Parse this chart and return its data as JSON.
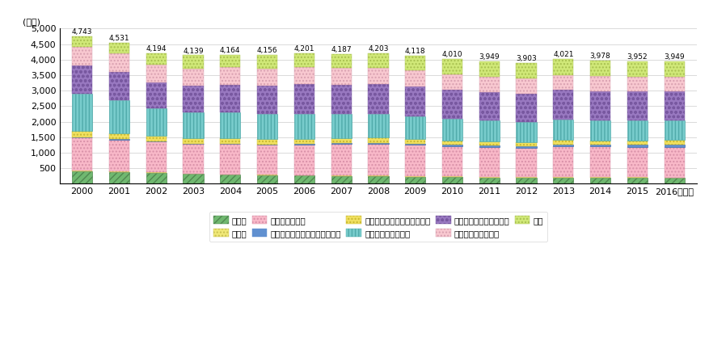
{
  "years": [
    2000,
    2001,
    2002,
    2003,
    2004,
    2005,
    2006,
    2007,
    2008,
    2009,
    2010,
    2011,
    2012,
    2013,
    2014,
    2015,
    2016
  ],
  "totals": [
    4743,
    4531,
    4194,
    4139,
    4164,
    4156,
    4201,
    4187,
    4203,
    4118,
    4010,
    3949,
    3903,
    4021,
    3978,
    3952,
    3949
  ],
  "categories": [
    "通信業",
    "放送業",
    "情報サービス業",
    "インターネット附随サービス業",
    "映像・音声・文字情報制作業",
    "情報通信関連製造業",
    "情報通信関連サービス業",
    "情報通信関連建設業",
    "研究"
  ],
  "data": {
    "通信業": [
      400,
      380,
      345,
      310,
      285,
      270,
      260,
      255,
      245,
      225,
      215,
      205,
      198,
      193,
      192,
      188,
      186
    ],
    "放送業": [
      28,
      27,
      26,
      25,
      24,
      23,
      22,
      22,
      21,
      21,
      20,
      19,
      19,
      19,
      19,
      18,
      18
    ],
    "情報サービス業": [
      1060,
      1020,
      1000,
      950,
      970,
      970,
      990,
      1010,
      1030,
      1020,
      985,
      960,
      940,
      1000,
      985,
      980,
      980
    ],
    "インターネット附随サービス業": [
      5,
      5,
      5,
      5,
      5,
      8,
      12,
      18,
      25,
      30,
      35,
      40,
      45,
      55,
      65,
      75,
      85
    ],
    "映像・音声・文字情報制作業": [
      210,
      200,
      180,
      172,
      172,
      170,
      167,
      165,
      165,
      158,
      147,
      142,
      137,
      140,
      140,
      140,
      140
    ],
    "情報通信関連製造業": [
      1200,
      1060,
      870,
      850,
      845,
      820,
      800,
      780,
      760,
      730,
      700,
      680,
      660,
      660,
      650,
      642,
      635
    ],
    "情報通信関連サービス業": [
      900,
      920,
      840,
      850,
      890,
      900,
      950,
      940,
      960,
      940,
      920,
      910,
      910,
      958,
      940,
      930,
      928
    ],
    "情報通信関連建設業": [
      607,
      590,
      562,
      550,
      560,
      555,
      550,
      540,
      535,
      520,
      500,
      490,
      475,
      480,
      480,
      477,
      470
    ],
    "研究": [
      333,
      329,
      366,
      427,
      413,
      440,
      450,
      457,
      462,
      474,
      488,
      503,
      519,
      516,
      507,
      502,
      507
    ]
  },
  "category_styles": {
    "通信業": {
      "color": "#70b870",
      "hatch": "////",
      "edgecolor": "#508850",
      "lw": 0.5
    },
    "放送業": {
      "color": "#f0e878",
      "hatch": "....",
      "edgecolor": "#c8c050",
      "lw": 0.3
    },
    "情報サービス業": {
      "color": "#f8b8c8",
      "hatch": "....",
      "edgecolor": "#d890a8",
      "lw": 0.3
    },
    "インターネット附随サービス業": {
      "color": "#6090d0",
      "hatch": "",
      "edgecolor": "#4070b0",
      "lw": 0.5
    },
    "映像・音声・文字情報制作業": {
      "color": "#f0e060",
      "hatch": "....",
      "edgecolor": "#c8b830",
      "lw": 0.3
    },
    "情報通信関連製造業": {
      "color": "#78cccc",
      "hatch": "||||",
      "edgecolor": "#50aaaa",
      "lw": 0.4
    },
    "情報通信関連サービス業": {
      "color": "#9878c0",
      "hatch": "ooo",
      "edgecolor": "#7858a0",
      "lw": 0.3
    },
    "情報通信関連建設業": {
      "color": "#f8c8d0",
      "hatch": "....",
      "edgecolor": "#d8a0b0",
      "lw": 0.3
    },
    "研究": {
      "color": "#d0e878",
      "hatch": "....",
      "edgecolor": "#a8c050",
      "lw": 0.3
    }
  },
  "ylim": [
    0,
    5000
  ],
  "yticks": [
    0,
    500,
    1000,
    1500,
    2000,
    2500,
    3000,
    3500,
    4000,
    4500,
    5000
  ],
  "ylabel": "(千人)"
}
